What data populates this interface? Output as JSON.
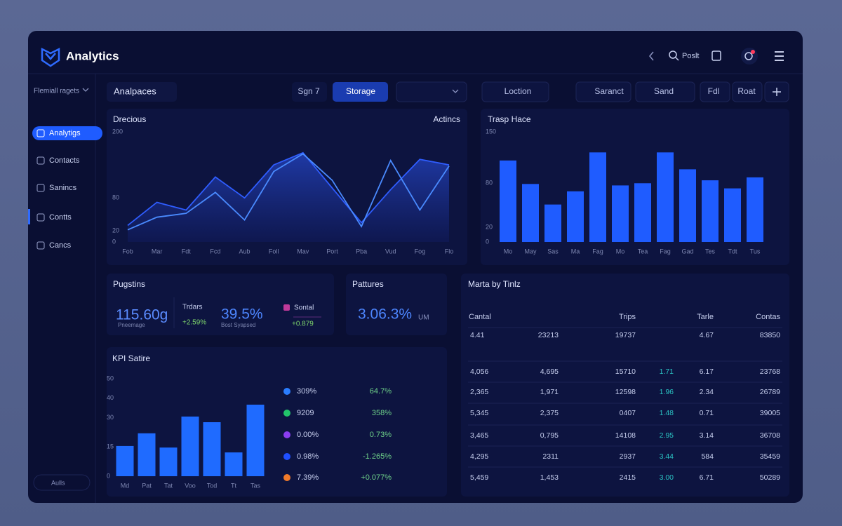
{
  "header": {
    "title": "Analytics",
    "search": "Poslt"
  },
  "sidebar": {
    "selector": "Flemiall ragets",
    "items": [
      "Analytigs",
      "Contacts",
      "Sanincs",
      "Contts",
      "Cancs"
    ],
    "footer": "Aulls"
  },
  "toolbar": {
    "title": "Analpaces",
    "items": [
      "Sgn 7",
      "Storage",
      "Loction",
      "Saranct",
      "Sand",
      "Fdl",
      "Roat"
    ]
  },
  "area_panel": {
    "title": "Drecious",
    "action": "Actincs",
    "chart": {
      "type": "line",
      "categories": [
        "Fob",
        "Mar",
        "Fdt",
        "Fcd",
        "Aub",
        "Foll",
        "Mav",
        "Port",
        "Pba",
        "Vud",
        "Fog",
        "Flo"
      ],
      "series": [
        {
          "color": "#2f5dff",
          "area": true,
          "values": [
            30,
            72,
            58,
            118,
            80,
            140,
            162,
            98,
            35,
            95,
            150,
            140
          ]
        },
        {
          "color": "#4a8bff",
          "area": false,
          "values": [
            22,
            45,
            52,
            90,
            40,
            128,
            160,
            112,
            28,
            148,
            58,
            138
          ]
        }
      ],
      "ylim": [
        0,
        200
      ],
      "yticks": [
        0,
        20,
        80,
        200
      ],
      "grid": false
    }
  },
  "bar_panel": {
    "title": "Trasp Hace",
    "chart": {
      "type": "bar",
      "categories": [
        "Mo",
        "May",
        "Sas",
        "Ma",
        "Fag",
        "Mo",
        "Tea",
        "Fag",
        "Gad",
        "Tes",
        "Tdt",
        "Tus"
      ],
      "values": [
        111,
        79,
        51,
        69,
        122,
        77,
        80,
        122,
        99,
        84,
        73,
        88
      ],
      "color": "#1f5cff",
      "ylim": [
        0,
        150
      ],
      "yticks": [
        0,
        20,
        80,
        150
      ],
      "grid": false
    }
  },
  "stats_panel": {
    "title": "Pugstins",
    "main": "115.60g",
    "main_caption": "Pneemage",
    "trend_label": "Trdars",
    "trend": "+2.59%",
    "rate": "39.5%",
    "rate_caption": "Bost Syapsed",
    "total_label": "Sontal",
    "total": "+0.879"
  },
  "features_panel": {
    "title": "Pattures",
    "value": "3.06.3%",
    "unit": "UM"
  },
  "kpi_panel": {
    "title": "KPI Satire",
    "chart": {
      "type": "bar",
      "categories": [
        "Md",
        "Pat",
        "Tat",
        "Voo",
        "Tod",
        "Tt",
        "Tas"
      ],
      "values": [
        15.5,
        22,
        14.7,
        30.6,
        27.7,
        12.2,
        36.7
      ],
      "color": "#1f6bff",
      "ylim": [
        0,
        50
      ],
      "yticks": [
        0,
        15,
        30,
        40,
        50
      ],
      "grid": false
    },
    "legend": [
      {
        "color": "#2a7dff",
        "value": "309%",
        "change": "64.7%"
      },
      {
        "color": "#22c46a",
        "value": "9209",
        "change": "358%"
      },
      {
        "color": "#8a3df0",
        "value": "0.00%",
        "change": "0.73%"
      },
      {
        "color": "#1f4fff",
        "value": "0.98%",
        "change": "-1.265%"
      },
      {
        "color": "#f07a2a",
        "value": "7.39%",
        "change": "+0.077%"
      }
    ]
  },
  "table_panel": {
    "title": "Marta by Tinlz",
    "headers": [
      "Cantal",
      "Trips",
      "Tarle",
      "Contas"
    ],
    "rows": [
      [
        "4.41",
        "23213",
        "19737",
        "4.67",
        "83850"
      ],
      [
        "4,056",
        "4,695",
        "15710",
        "1.71",
        "6.17",
        "23768"
      ],
      [
        "2,365",
        "1,971",
        "12598",
        "1.96",
        "2.34",
        "26789"
      ],
      [
        "5,345",
        "2,375",
        "0407",
        "1.48",
        "0.71",
        "39005"
      ],
      [
        "3,465",
        "0,795",
        "14108",
        "2.95",
        "3.14",
        "36708"
      ],
      [
        "4,295",
        "2311",
        "2937",
        "3.44",
        "584",
        "35459"
      ],
      [
        "5,459",
        "1,453",
        "2415",
        "3.00",
        "6.71",
        "50289"
      ]
    ]
  }
}
